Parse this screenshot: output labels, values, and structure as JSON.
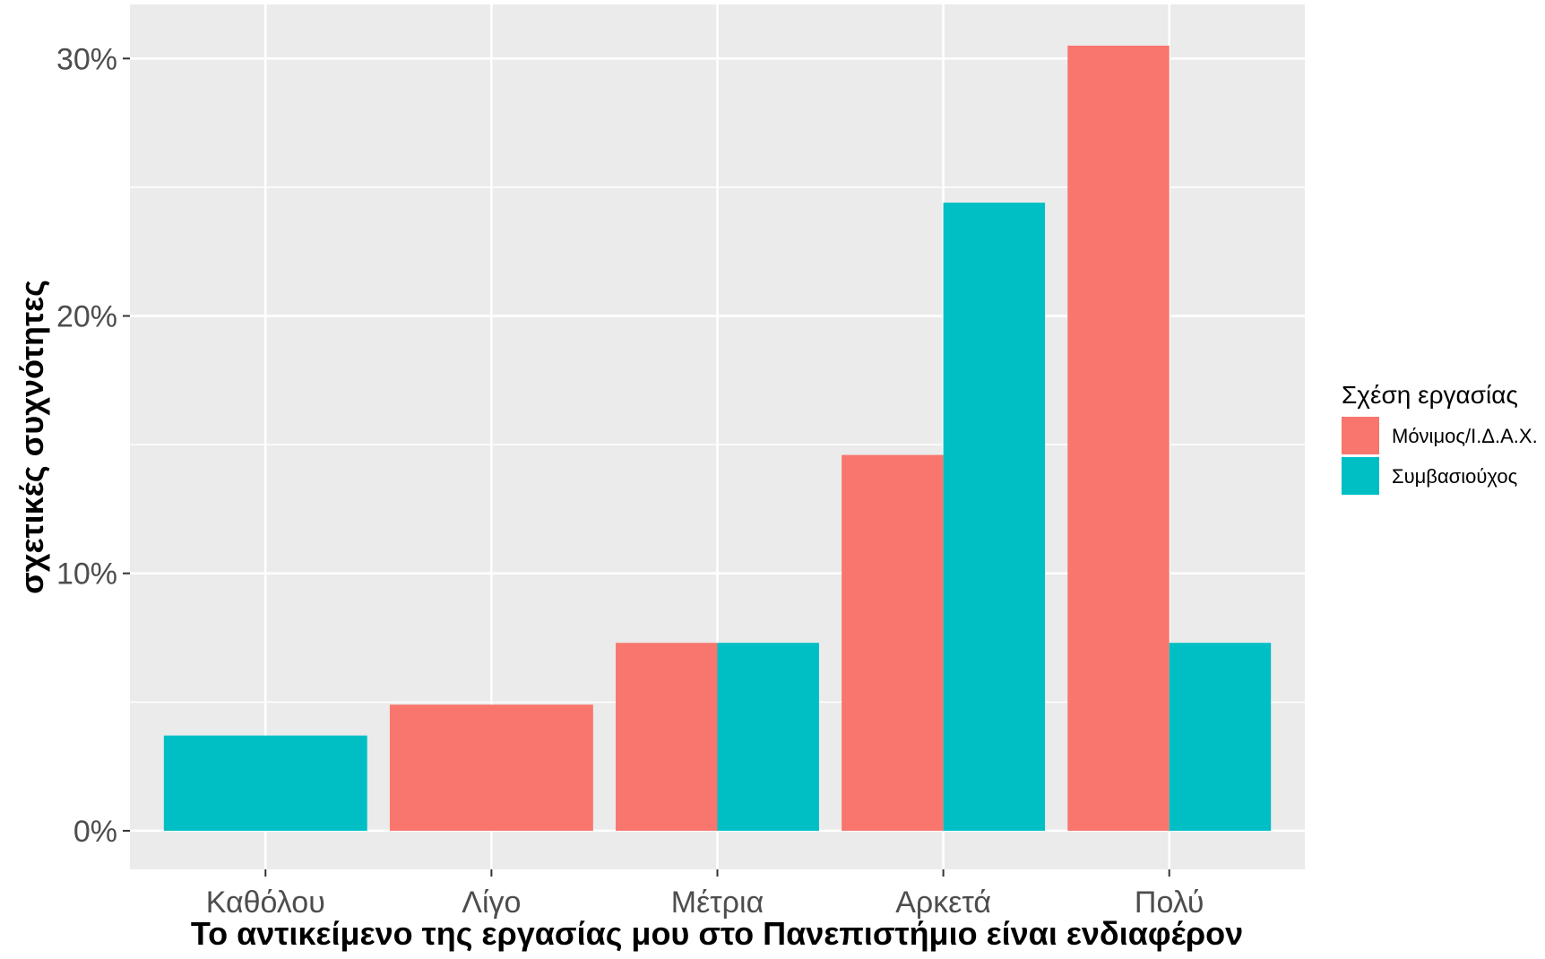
{
  "chart_data": {
    "type": "bar",
    "xlabel": "Το αντικείμενο της εργασίας μου στο Πανεπιστήμιο είναι ενδιαφέρον",
    "ylabel": "σχετικές συχνότητες",
    "categories": [
      "Καθόλου",
      "Λίγο",
      "Μέτρια",
      "Αρκετά",
      "Πολύ"
    ],
    "series": [
      {
        "name": "Μόνιμος/Ι.Δ.Α.Χ.",
        "color": "#F8766D",
        "values": [
          0,
          4.9,
          7.3,
          14.6,
          30.5
        ]
      },
      {
        "name": "Συμβασιούχος",
        "color": "#00BFC4",
        "values": [
          3.7,
          0,
          7.3,
          24.4,
          7.3
        ]
      }
    ],
    "ylim": [
      -1.5,
      32.1
    ],
    "yticks": [
      0,
      10,
      20,
      30
    ],
    "ytick_labels": [
      "0%",
      "10%",
      "20%",
      "30%"
    ],
    "grid": true,
    "legend": {
      "title": "Σχέση εργασίας",
      "position": "right"
    },
    "colors": {
      "panel_background": "#EBEBEB",
      "grid_line": "#FFFFFF"
    }
  }
}
